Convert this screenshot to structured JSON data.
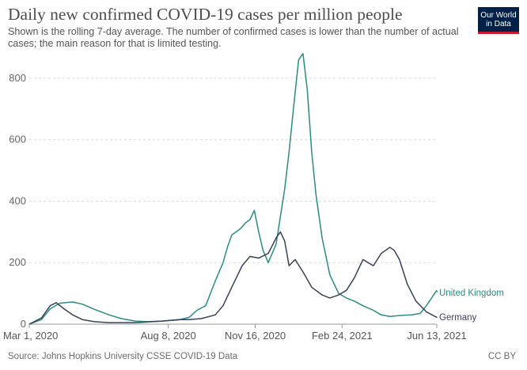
{
  "header": {
    "title": "Daily new confirmed COVID-19 cases per million people",
    "subtitle": "Shown is the rolling 7-day average. The number of confirmed cases is lower than the number of actual cases; the main reason for that is limited testing."
  },
  "logo": {
    "line1": "Our World",
    "line2": "in Data",
    "bg": "#002147",
    "accent": "#c71a2d"
  },
  "footer": {
    "source": "Source: Johns Hopkins University CSSE COVID-19 Data",
    "license": "CC BY"
  },
  "chart_data": {
    "type": "line",
    "title": "Daily new confirmed COVID-19 cases per million people",
    "xlabel": "",
    "ylabel": "",
    "xlim": [
      "2020-03-01",
      "2021-06-13"
    ],
    "ylim": [
      0,
      900
    ],
    "yticks": [
      0,
      200,
      400,
      600,
      800
    ],
    "xticks": [
      "Mar 1, 2020",
      "Aug 8, 2020",
      "Nov 16, 2020",
      "Feb 24, 2021",
      "Jun 13, 2021"
    ],
    "grid": "horizontal dashed",
    "legend": "inline labels at line ends",
    "series": [
      {
        "name": "United Kingdom",
        "color": "#2a8c82",
        "x": [
          "2020-03-01",
          "2020-03-15",
          "2020-03-25",
          "2020-04-05",
          "2020-04-12",
          "2020-04-20",
          "2020-05-01",
          "2020-05-15",
          "2020-06-01",
          "2020-06-15",
          "2020-07-01",
          "2020-07-15",
          "2020-08-01",
          "2020-08-20",
          "2020-09-01",
          "2020-09-10",
          "2020-09-20",
          "2020-10-01",
          "2020-10-10",
          "2020-10-15",
          "2020-10-20",
          "2020-10-30",
          "2020-11-05",
          "2020-11-10",
          "2020-11-15",
          "2020-11-20",
          "2020-11-25",
          "2020-12-01",
          "2020-12-10",
          "2020-12-20",
          "2020-12-25",
          "2020-12-30",
          "2021-01-05",
          "2021-01-10",
          "2021-01-15",
          "2021-01-20",
          "2021-01-25",
          "2021-02-01",
          "2021-02-10",
          "2021-02-20",
          "2021-03-01",
          "2021-03-10",
          "2021-03-20",
          "2021-04-01",
          "2021-04-10",
          "2021-04-20",
          "2021-05-01",
          "2021-05-15",
          "2021-05-25",
          "2021-06-01",
          "2021-06-13"
        ],
        "y": [
          0,
          15,
          50,
          68,
          70,
          72,
          65,
          48,
          30,
          18,
          10,
          8,
          10,
          14,
          22,
          45,
          60,
          140,
          200,
          250,
          290,
          310,
          330,
          340,
          370,
          300,
          240,
          200,
          260,
          440,
          560,
          700,
          860,
          880,
          760,
          560,
          420,
          280,
          160,
          100,
          85,
          75,
          60,
          45,
          30,
          25,
          28,
          30,
          35,
          60,
          110
        ]
      },
      {
        "name": "Germany",
        "color": "#39425c",
        "x": [
          "2020-03-01",
          "2020-03-15",
          "2020-03-25",
          "2020-04-01",
          "2020-04-10",
          "2020-04-20",
          "2020-05-01",
          "2020-05-15",
          "2020-06-01",
          "2020-07-01",
          "2020-08-01",
          "2020-08-20",
          "2020-09-01",
          "2020-09-15",
          "2020-10-01",
          "2020-10-10",
          "2020-10-20",
          "2020-11-01",
          "2020-11-10",
          "2020-11-20",
          "2020-12-01",
          "2020-12-10",
          "2020-12-15",
          "2020-12-20",
          "2020-12-25",
          "2021-01-01",
          "2021-01-10",
          "2021-01-20",
          "2021-02-01",
          "2021-02-10",
          "2021-02-20",
          "2021-03-01",
          "2021-03-10",
          "2021-03-20",
          "2021-04-01",
          "2021-04-10",
          "2021-04-20",
          "2021-04-25",
          "2021-05-01",
          "2021-05-10",
          "2021-05-20",
          "2021-06-01",
          "2021-06-13"
        ],
        "y": [
          0,
          20,
          60,
          70,
          50,
          30,
          15,
          8,
          5,
          5,
          10,
          15,
          15,
          18,
          30,
          60,
          120,
          190,
          220,
          215,
          230,
          280,
          300,
          270,
          190,
          210,
          170,
          120,
          95,
          85,
          95,
          110,
          150,
          210,
          190,
          230,
          250,
          240,
          210,
          130,
          75,
          40,
          22
        ]
      }
    ]
  }
}
